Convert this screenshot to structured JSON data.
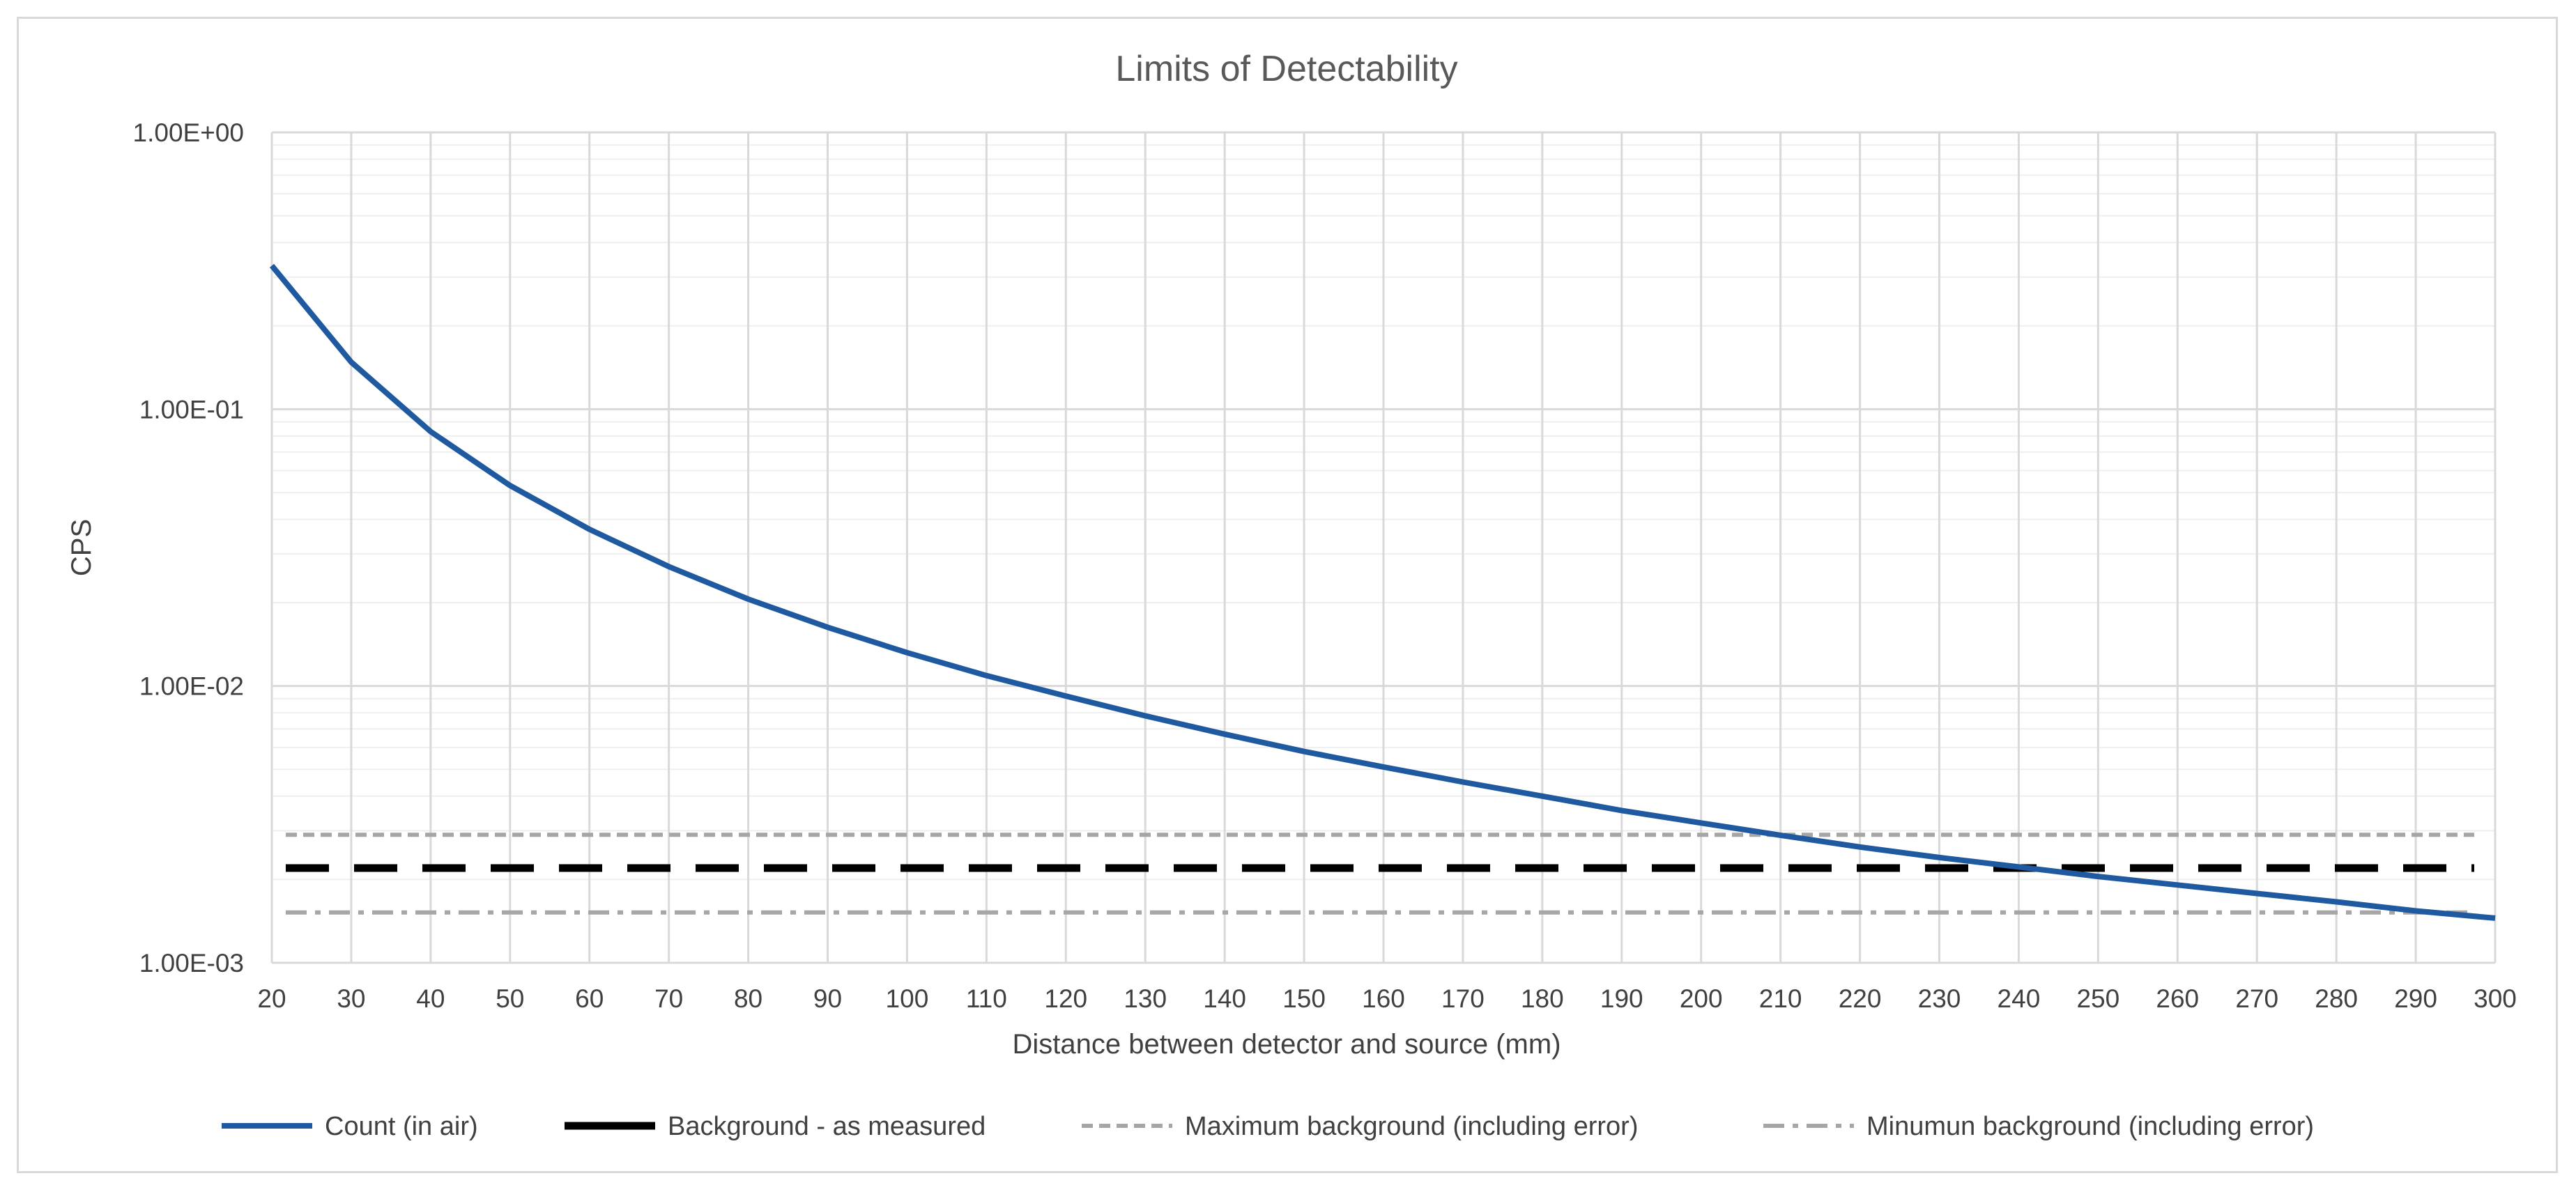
{
  "chart_data": {
    "type": "line",
    "title": "Limits of Detectability",
    "xlabel": "Distance between detector and source (mm)",
    "ylabel": "CPS",
    "yscale": "log",
    "ylim": [
      0.001,
      1
    ],
    "xlim": [
      20,
      300
    ],
    "y_tick_labels": [
      "1.00E+00",
      "1.00E-01",
      "1.00E-02",
      "1.00E-03"
    ],
    "y_tick_values": [
      1,
      0.1,
      0.01,
      0.001
    ],
    "x": [
      20,
      30,
      40,
      50,
      60,
      70,
      80,
      90,
      100,
      110,
      120,
      130,
      140,
      150,
      160,
      170,
      180,
      190,
      200,
      210,
      220,
      230,
      240,
      250,
      260,
      270,
      280,
      290,
      300
    ],
    "series": [
      {
        "name": "Count (in air)",
        "color": "#1f5aa0",
        "style": "solid",
        "values": [
          0.33,
          0.148,
          0.083,
          0.053,
          0.0368,
          0.027,
          0.0206,
          0.0163,
          0.0132,
          0.0109,
          0.0092,
          0.0078,
          0.0067,
          0.0058,
          0.0051,
          0.0045,
          0.004,
          0.00355,
          0.0032,
          0.00289,
          0.00262,
          0.0024,
          0.00222,
          0.00205,
          0.00191,
          0.00178,
          0.00166,
          0.00154,
          0.00145
        ]
      },
      {
        "name": "Background - as measured",
        "color": "#000000",
        "style": "dash-long",
        "constant": 0.0022
      },
      {
        "name": "Maximum background (including error)",
        "color": "#a6a6a6",
        "style": "dash-short",
        "constant": 0.0029
      },
      {
        "name": "Minumun background (including error)",
        "color": "#a6a6a6",
        "style": "dash-dot",
        "constant": 0.00152
      }
    ],
    "grid": true,
    "legend_position": "bottom"
  }
}
